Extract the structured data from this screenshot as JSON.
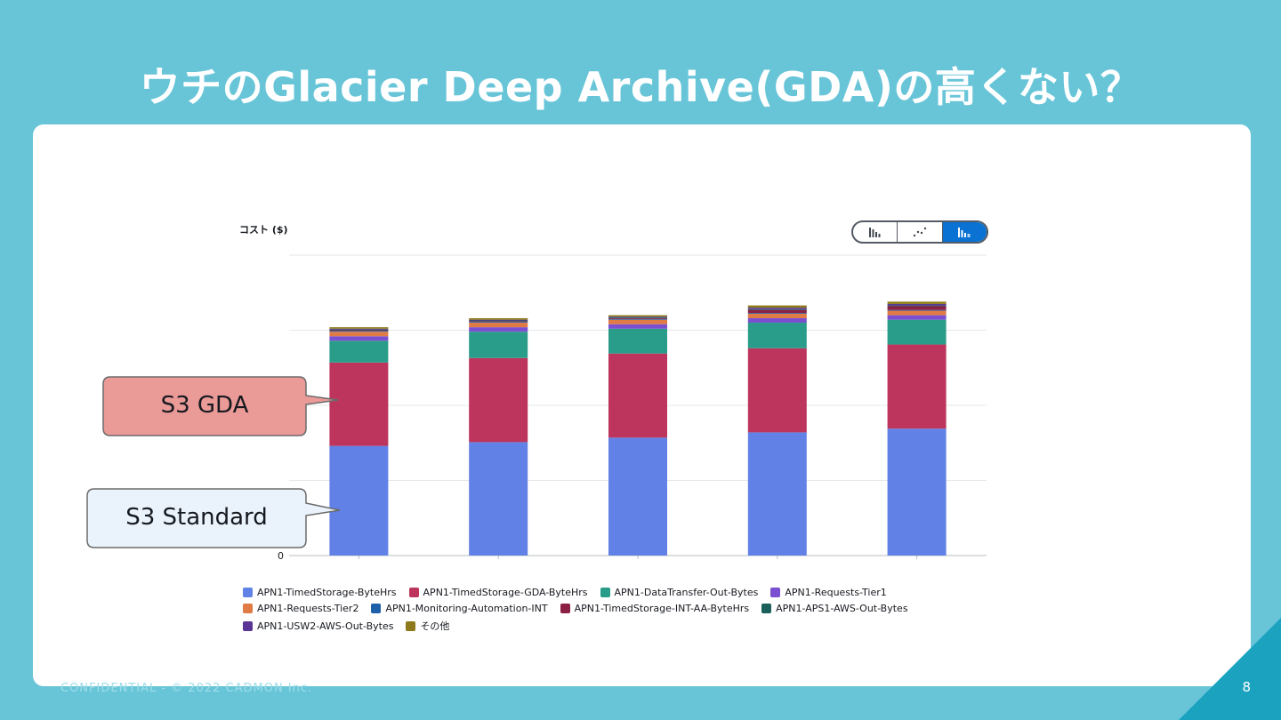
{
  "slide": {
    "title": "ウチのGlacier Deep Archive(GDA)の高くない？",
    "page_number": "8",
    "footer": "CONFIDENTIAL - © 2022 CADMON Inc."
  },
  "chart_toggle": {
    "options": [
      "bar-chart-icon",
      "line-chart-icon",
      "stacked-bar-chart-icon"
    ],
    "active": "stacked-bar-chart-icon"
  },
  "callouts": {
    "gda": "S3 GDA",
    "standard": "S3 Standard"
  },
  "colors": {
    "background": "#68c5d8",
    "card": "#ffffff",
    "accent": "#0972d3"
  },
  "chart_data": {
    "type": "bar",
    "stacked": true,
    "ylabel": "コスト ($)",
    "ytick_labels": [
      "0"
    ],
    "ylim": [
      0,
      4
    ],
    "grid": true,
    "legend_position": "bottom",
    "categories": [
      "",
      "",
      "",
      "",
      ""
    ],
    "series": [
      {
        "name": "APN1-TimedStorage-ByteHrs",
        "color": "#6281e6",
        "values": [
          1.46,
          1.51,
          1.57,
          1.64,
          1.69
        ]
      },
      {
        "name": "APN1-TimedStorage-GDA-ByteHrs",
        "color": "#bd355c",
        "values": [
          1.11,
          1.12,
          1.12,
          1.12,
          1.12
        ]
      },
      {
        "name": "APN1-DataTransfer-Out-Bytes",
        "color": "#2a9d8a",
        "values": [
          0.29,
          0.35,
          0.33,
          0.34,
          0.33
        ]
      },
      {
        "name": "APN1-Requests-Tier1",
        "color": "#7a4fd0",
        "values": [
          0.06,
          0.06,
          0.06,
          0.06,
          0.06
        ]
      },
      {
        "name": "APN1-Requests-Tier2",
        "color": "#e07b46",
        "values": [
          0.06,
          0.06,
          0.06,
          0.06,
          0.06
        ]
      },
      {
        "name": "APN1-Monitoring-Automation-INT",
        "color": "#1d5fa8",
        "values": [
          0.01,
          0.01,
          0.01,
          0.01,
          0.01
        ]
      },
      {
        "name": "APN1-TimedStorage-INT-AA-ByteHrs",
        "color": "#8c1f44",
        "values": [
          0.01,
          0.01,
          0.01,
          0.04,
          0.05
        ]
      },
      {
        "name": "APN1-APS1-AWS-Out-Bytes",
        "color": "#1a5f5a",
        "values": [
          0.01,
          0.01,
          0.01,
          0.01,
          0.01
        ]
      },
      {
        "name": "APN1-USW2-AWS-Out-Bytes",
        "color": "#5a3596",
        "values": [
          0.01,
          0.01,
          0.01,
          0.02,
          0.02
        ]
      },
      {
        "name": "その他",
        "color": "#8e7a1a",
        "values": [
          0.02,
          0.02,
          0.02,
          0.03,
          0.03
        ]
      }
    ]
  }
}
